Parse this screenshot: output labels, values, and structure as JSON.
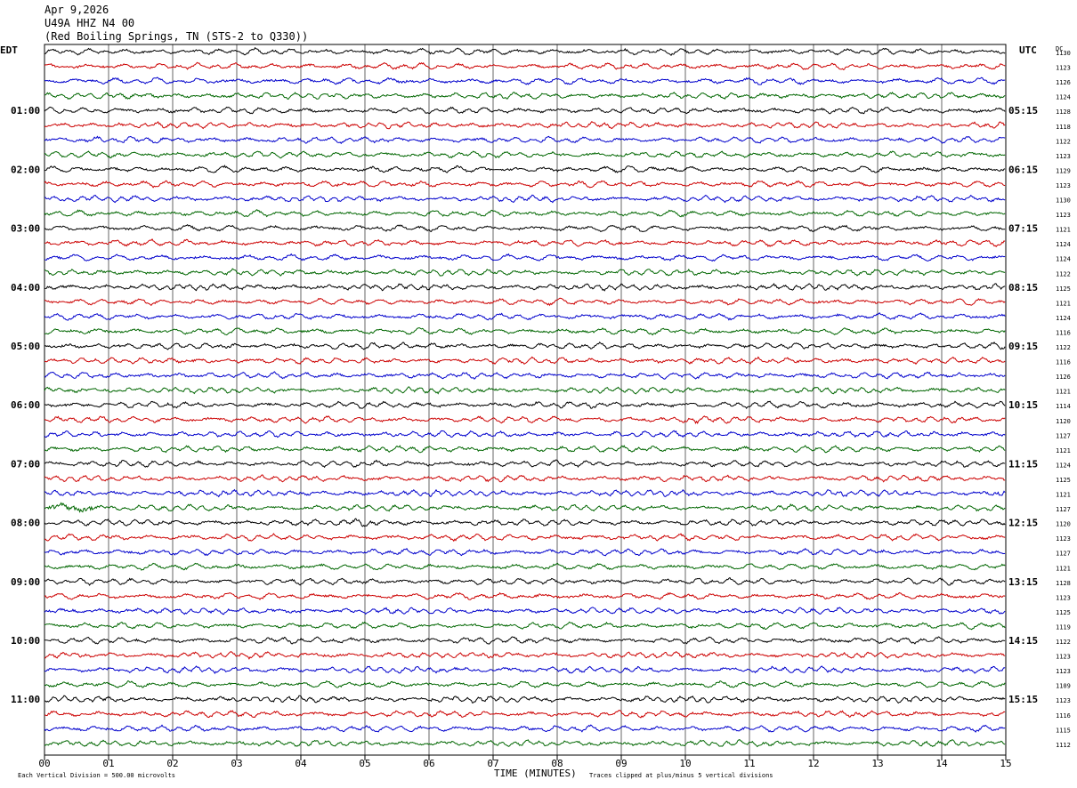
{
  "header": {
    "date": "Apr 9,2026",
    "station": "U49A HHZ N4 00",
    "location": "(Red Boiling Springs, TN (STS-2 to Q330))"
  },
  "left_tz": "EDT",
  "right_tz": "UTC",
  "dc_label": "DC",
  "footer": {
    "scale_note": "Each Vertical Division =  500.00 microvolts",
    "xlabel": "TIME (MINUTES)",
    "clip_note": "Traces clipped at plus/minus 5 vertical divisions"
  },
  "chart_data": {
    "type": "line",
    "title": "U49A HHZ N4 00",
    "xlabel": "TIME (MINUTES)",
    "xlim": [
      0,
      15
    ],
    "x_ticks": [
      "00",
      "01",
      "02",
      "03",
      "04",
      "05",
      "06",
      "07",
      "08",
      "09",
      "10",
      "11",
      "12",
      "13",
      "14",
      "15"
    ],
    "trace_colors": [
      "#000000",
      "#cc0000",
      "#0000cc",
      "#006600"
    ],
    "left_hour_labels": [
      "01:00",
      "02:00",
      "03:00",
      "04:00",
      "05:00",
      "06:00",
      "07:00",
      "08:00",
      "09:00",
      "10:00",
      "11:00"
    ],
    "right_hour_labels": [
      "05:15",
      "06:15",
      "07:15",
      "08:15",
      "09:15",
      "10:15",
      "11:15",
      "12:15",
      "13:15",
      "14:15",
      "15:15"
    ],
    "dc_offsets": [
      "1130",
      "1123",
      "1126",
      "1124",
      "1128",
      "1118",
      "1122",
      "1123",
      "1129",
      "1123",
      "1130",
      "1123",
      "1121",
      "1124",
      "1124",
      "1122",
      "1125",
      "1121",
      "1124",
      "1116",
      "1122",
      "1116",
      "1126",
      "1121",
      "1114",
      "1120",
      "1127",
      "1121",
      "1124",
      "1125",
      "1121",
      "1127",
      "1120",
      "1123",
      "1127",
      "1121",
      "1128",
      "1123",
      "1125",
      "1119",
      "1122",
      "1123",
      "1123",
      "1109",
      "1123",
      "1116",
      "1115",
      "1112"
    ],
    "events": [
      {
        "trace": 31,
        "minute": 0.05,
        "duration_min": 0.7,
        "amplitude": 2.2
      },
      {
        "trace": 30,
        "minute": 14.8,
        "duration_min": 0.2,
        "amplitude": 2.0
      },
      {
        "trace": 32,
        "minute": 4.8,
        "duration_min": 0.4,
        "amplitude": 1.5
      },
      {
        "trace": 25,
        "minute": 10.0,
        "duration_min": 0.2,
        "amplitude": 1.6
      }
    ]
  }
}
